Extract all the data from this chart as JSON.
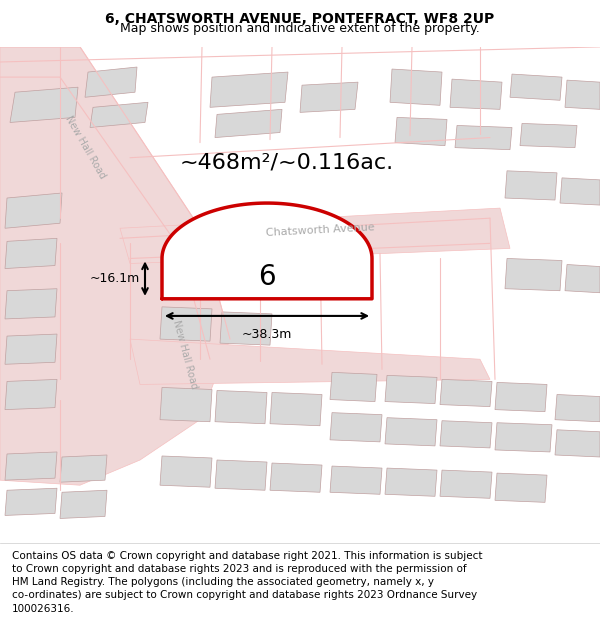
{
  "title": "6, CHATSWORTH AVENUE, PONTEFRACT, WF8 2UP",
  "subtitle": "Map shows position and indicative extent of the property.",
  "footer": "Contains OS data © Crown copyright and database right 2021. This information is subject\nto Crown copyright and database rights 2023 and is reproduced with the permission of\nHM Land Registry. The polygons (including the associated geometry, namely x, y\nco-ordinates) are subject to Crown copyright and database rights 2023 Ordnance Survey\n100026316.",
  "area_label": "~468m²/~0.116ac.",
  "width_label": "~38.3m",
  "height_label": "~16.1m",
  "plot_number": "6",
  "road_label_1": "New Hall Road",
  "road_label_2": "Chatsworth Avenue",
  "road_label_3": "New Hall Road",
  "bg_color": "#f5f0f0",
  "plot_fill": "#ffffff",
  "plot_border_color": "#cc0000",
  "road_color": "#f5c0c0",
  "building_fill": "#d8d8d8",
  "building_edge": "#c0a0a0",
  "map_bg": "#f5f0f0",
  "title_fontsize": 10,
  "subtitle_fontsize": 9,
  "footer_fontsize": 7.5
}
